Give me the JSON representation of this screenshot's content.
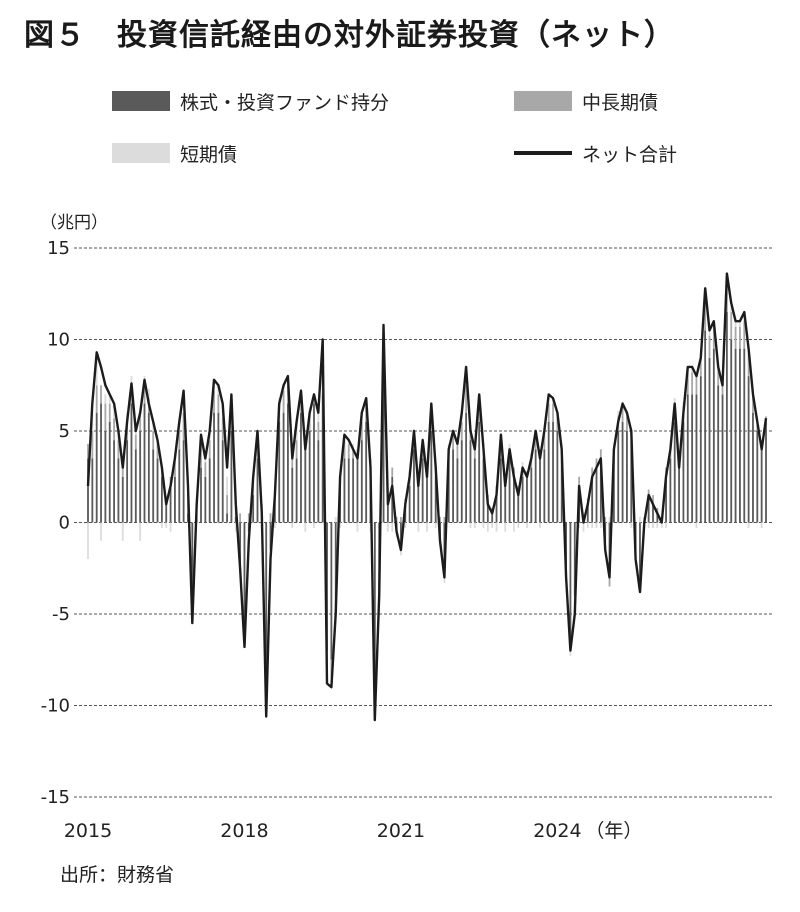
{
  "title": "図５　投資信託経由の対外証券投資（ネット）",
  "source": "出所：財務省",
  "colors": {
    "equity": "#5a5a5a",
    "midlong": "#a8a8a8",
    "short": "#dcdcdc",
    "net": "#1c1c1c",
    "grid": "#555555"
  },
  "chart_data": {
    "type": "bar",
    "title": "投資信託経由の対外証券投資（ネット）",
    "ylabel": "（兆円）",
    "xlabel": "（年）",
    "ylim": [
      -15,
      15
    ],
    "yticks": [
      15,
      10,
      5,
      0,
      -5,
      -10,
      -15
    ],
    "ytick_labels": [
      "15",
      "10",
      "5",
      "0",
      "-5",
      "-10",
      "-15"
    ],
    "xtick_labels": [
      "2015",
      "2018",
      "2021",
      "2024"
    ],
    "xtick_positions": [
      0,
      36,
      72,
      108
    ],
    "x_unit_label": "（年）",
    "grid": "horizontal dashed",
    "legend": [
      {
        "key": "equity",
        "label": "株式・投資ファンド持分",
        "kind": "bar"
      },
      {
        "key": "midlong",
        "label": "中長期債",
        "kind": "bar"
      },
      {
        "key": "short",
        "label": "短期債",
        "kind": "bar"
      },
      {
        "key": "net",
        "label": "ネット合計",
        "kind": "line"
      }
    ],
    "series": [
      {
        "name": "ネット合計",
        "key": "net",
        "values": [
          2.0,
          6.5,
          9.3,
          8.5,
          7.5,
          7.0,
          6.5,
          5.0,
          3.0,
          5.5,
          7.6,
          5.0,
          6.0,
          7.8,
          6.5,
          5.5,
          4.5,
          3.0,
          1.0,
          2.0,
          3.5,
          5.5,
          7.2,
          2.0,
          -5.5,
          1.0,
          4.8,
          3.5,
          5.0,
          7.8,
          7.5,
          6.5,
          3.0,
          7.0,
          1.0,
          -2.5,
          -6.8,
          -1.0,
          2.5,
          5.0,
          0.5,
          -10.6,
          -2.0,
          1.5,
          6.5,
          7.5,
          8.0,
          3.5,
          5.5,
          7.2,
          4.0,
          6.0,
          7.0,
          6.0,
          10.0,
          -8.8,
          -9.0,
          -5.0,
          2.5,
          4.8,
          4.5,
          4.0,
          3.5,
          6.0,
          6.8,
          3.0,
          -10.8,
          -4.0,
          10.8,
          1.0,
          2.0,
          -0.5,
          -1.5,
          1.0,
          2.5,
          5.0,
          2.0,
          4.5,
          2.5,
          6.5,
          3.0,
          -1.0,
          -3.0,
          4.0,
          5.0,
          4.3,
          6.0,
          8.5,
          5.0,
          4.0,
          7.0,
          4.0,
          1.0,
          0.5,
          1.5,
          4.8,
          2.0,
          4.0,
          2.5,
          1.5,
          3.0,
          2.5,
          3.5,
          5.0,
          3.5,
          5.0,
          7.0,
          6.8,
          6.0,
          4.0,
          -3.0,
          -7.0,
          -5.0,
          2.0,
          0.0,
          1.0,
          2.5,
          3.0,
          3.5,
          -1.5,
          -3.0,
          4.0,
          5.5,
          6.5,
          6.0,
          5.0,
          -2.0,
          -3.8,
          0.0,
          1.5,
          1.0,
          0.5,
          0.0,
          2.5,
          4.0,
          6.5,
          3.0,
          6.0,
          8.5,
          8.5,
          8.0,
          9.0,
          12.8,
          10.5,
          11.0,
          8.5,
          7.5,
          13.6,
          12.0,
          11.0,
          11.0,
          11.5,
          9.5,
          7.0,
          5.5,
          4.0,
          5.7
        ]
      },
      {
        "name": "株式・投資ファンド持分",
        "key": "equity",
        "values": [
          3.5,
          3.5,
          6.0,
          6.5,
          5.0,
          5.5,
          4.5,
          3.5,
          2.5,
          4.5,
          6.5,
          4.0,
          5.0,
          6.5,
          6.0,
          4.0,
          3.5,
          2.5,
          1.0,
          2.0,
          2.5,
          4.0,
          4.5,
          0.5,
          -4.0,
          0.5,
          3.0,
          2.5,
          3.5,
          6.0,
          6.0,
          4.5,
          0.5,
          5.0,
          0.3,
          -2.5,
          -6.0,
          -0.5,
          1.5,
          3.5,
          0.5,
          -8.5,
          -1.5,
          1.5,
          5.5,
          6.0,
          6.5,
          3.0,
          3.5,
          6.0,
          4.0,
          5.0,
          6.5,
          4.5,
          7.0,
          -7.0,
          -7.5,
          -4.5,
          2.0,
          3.5,
          3.5,
          3.5,
          3.5,
          4.5,
          5.5,
          3.0,
          -9.5,
          -3.5,
          9.0,
          1.0,
          2.5,
          -0.5,
          -1.5,
          1.0,
          2.0,
          4.0,
          2.0,
          3.5,
          2.5,
          5.0,
          2.5,
          -1.0,
          -3.0,
          3.5,
          4.0,
          3.5,
          4.5,
          6.0,
          4.5,
          3.5,
          5.5,
          3.5,
          1.0,
          0.5,
          1.5,
          3.5,
          2.0,
          3.5,
          2.5,
          1.5,
          2.5,
          2.5,
          3.0,
          4.0,
          3.5,
          4.0,
          5.5,
          5.5,
          5.0,
          3.5,
          -2.5,
          -6.5,
          -4.0,
          2.0,
          0.0,
          1.0,
          2.5,
          3.0,
          3.5,
          -1.0,
          -3.0,
          3.5,
          5.0,
          5.5,
          5.0,
          4.5,
          -1.5,
          -3.5,
          0.0,
          1.5,
          1.0,
          0.5,
          0.0,
          2.5,
          3.5,
          5.5,
          3.0,
          5.5,
          7.0,
          7.0,
          7.0,
          8.0,
          10.5,
          9.0,
          9.5,
          7.5,
          7.0,
          11.5,
          10.0,
          9.5,
          9.5,
          9.5,
          8.0,
          6.0,
          5.0,
          4.0,
          5.5
        ]
      },
      {
        "name": "中長期債",
        "key": "midlong",
        "values": [
          0.8,
          1.5,
          1.5,
          1.0,
          1.5,
          1.0,
          1.2,
          1.0,
          0.8,
          1.0,
          1.0,
          0.8,
          1.0,
          1.0,
          0.8,
          1.0,
          0.8,
          0.5,
          0.3,
          0.5,
          0.8,
          1.0,
          1.5,
          1.0,
          -1.0,
          0.5,
          1.2,
          0.8,
          1.0,
          1.2,
          1.0,
          1.2,
          1.0,
          1.0,
          0.5,
          0.5,
          -0.5,
          0.5,
          0.8,
          1.2,
          0.5,
          -1.5,
          0.5,
          0.5,
          1.0,
          1.2,
          1.0,
          0.5,
          1.0,
          1.0,
          0.5,
          1.0,
          0.5,
          1.0,
          1.5,
          -1.0,
          -1.0,
          -0.5,
          0.5,
          1.0,
          0.8,
          0.5,
          0.5,
          1.0,
          1.0,
          0.5,
          -1.0,
          -0.5,
          1.5,
          0.5,
          0.5,
          0.3,
          0.3,
          0.3,
          0.5,
          0.8,
          0.5,
          0.8,
          0.5,
          1.0,
          0.8,
          0.3,
          0.3,
          0.5,
          0.8,
          0.8,
          1.0,
          1.5,
          0.8,
          0.8,
          1.0,
          0.8,
          0.5,
          0.3,
          0.5,
          1.0,
          0.5,
          0.5,
          0.5,
          0.5,
          0.5,
          0.3,
          0.5,
          0.8,
          0.5,
          0.8,
          1.0,
          1.0,
          0.8,
          0.5,
          -0.5,
          -0.5,
          -0.5,
          0.5,
          0.5,
          0.3,
          0.5,
          0.5,
          0.5,
          0.3,
          -0.5,
          0.5,
          0.8,
          0.8,
          0.8,
          0.5,
          -0.5,
          -0.3,
          0.3,
          0.3,
          0.5,
          0.3,
          0.3,
          0.5,
          0.5,
          1.0,
          0.5,
          0.8,
          1.2,
          1.2,
          1.0,
          1.0,
          1.5,
          1.2,
          1.2,
          1.0,
          0.5,
          1.5,
          1.5,
          1.2,
          1.2,
          1.5,
          1.2,
          1.0,
          0.5,
          0.3,
          0.3
        ]
      },
      {
        "name": "短期債",
        "key": "short",
        "values": [
          -2.0,
          1.0,
          1.5,
          -1.0,
          0.5,
          0.5,
          0.8,
          0.5,
          -1.0,
          0.5,
          0.5,
          0.5,
          -1.0,
          0.5,
          0.5,
          0.5,
          0.5,
          -0.3,
          -0.3,
          -0.5,
          0.3,
          0.5,
          1.0,
          0.5,
          -0.5,
          0.3,
          0.5,
          0.3,
          0.5,
          0.5,
          0.5,
          0.5,
          1.0,
          0.5,
          -0.5,
          -0.3,
          -0.3,
          -0.5,
          0.3,
          0.3,
          -0.5,
          -0.5,
          -0.5,
          -0.3,
          0.3,
          0.3,
          0.5,
          -0.3,
          1.0,
          0.3,
          -0.5,
          0.3,
          -0.3,
          0.5,
          1.5,
          -0.5,
          -0.5,
          0.3,
          -0.3,
          0.3,
          0.3,
          0.3,
          -0.5,
          0.5,
          0.3,
          -0.5,
          -0.3,
          -0.3,
          0.3,
          -0.5,
          -0.5,
          -0.3,
          -0.3,
          -0.3,
          0.3,
          0.3,
          -0.5,
          0.3,
          -0.5,
          0.5,
          -0.3,
          -0.3,
          -0.3,
          0.3,
          0.3,
          0.3,
          0.5,
          1.0,
          -0.3,
          -0.3,
          0.5,
          -0.3,
          -0.5,
          -0.3,
          -0.5,
          0.3,
          -0.5,
          0.3,
          -0.5,
          -0.3,
          0.3,
          -0.3,
          0.3,
          0.3,
          -0.3,
          0.3,
          0.5,
          0.3,
          0.3,
          0.3,
          -0.3,
          -0.3,
          -0.5,
          -0.3,
          -0.5,
          -0.3,
          -0.3,
          -0.3,
          -0.3,
          -0.3,
          0.3,
          0.3,
          0.3,
          0.3,
          0.3,
          -0.3,
          -0.3,
          0.3,
          -0.3,
          -0.3,
          -0.3,
          -0.3,
          -0.3,
          -0.3,
          0.5,
          0.3,
          0.3,
          0.3,
          0.3,
          0.3,
          -0.3,
          0.5,
          0.3,
          0.3,
          0.3,
          0.3,
          0.5,
          0.3,
          0.3,
          0.3,
          0.3,
          0.3,
          -0.3,
          0.3,
          0.3,
          -0.3
        ]
      }
    ]
  }
}
